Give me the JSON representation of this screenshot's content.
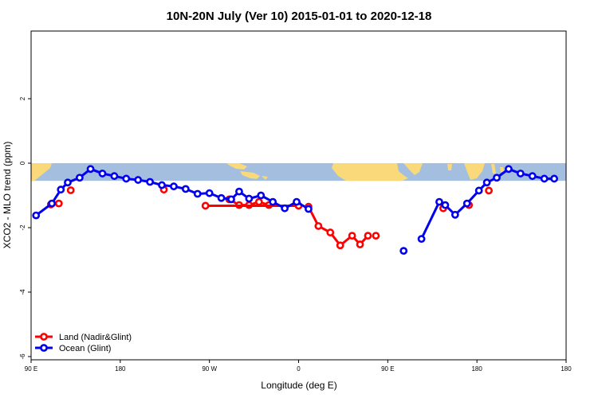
{
  "chart_data": {
    "type": "line",
    "title": "10N-20N July (Ver 10)   2015-01-01 to 2020-12-18",
    "xlabel": "Longitude (deg E)",
    "ylabel": "XCO2 - MLO trend (ppm)",
    "xlim": [
      -90,
      180
    ],
    "ylim": [
      -6.1,
      4.1
    ],
    "xticks": [
      {
        "value": -90,
        "label": "90 E"
      },
      {
        "value": -45,
        "label": "180"
      },
      {
        "value": 0,
        "label": "90 W"
      },
      {
        "value": 45,
        "label": "0"
      },
      {
        "value": 90,
        "label": "90 E"
      },
      {
        "value": 135,
        "label": "180"
      }
    ],
    "yticks": [
      {
        "value": -6,
        "label": "-6"
      },
      {
        "value": -4,
        "label": "-4"
      },
      {
        "value": -2,
        "label": "-2"
      },
      {
        "value": 0,
        "label": "0"
      },
      {
        "value": 2,
        "label": "2"
      }
    ],
    "grid": false,
    "legend_position": "bottom-left",
    "map_band": {
      "y_top": 0.0,
      "y_bottom": -0.55,
      "ocean_color": "#a4bee0",
      "land_color": "#f9d97a"
    },
    "series": [
      {
        "name": "Land (Nadir&Glint)",
        "color": "#ff0000",
        "segments": [
          {
            "x": [
              -80,
              -76
            ],
            "y": [
              -1.28,
              -1.25
            ]
          },
          {
            "x": [
              -70
            ],
            "y": [
              -0.84
            ]
          },
          {
            "x": [
              -23
            ],
            "y": [
              -0.82
            ]
          },
          {
            "x": [
              10,
              15,
              20,
              25,
              30
            ],
            "y": [
              -1.12,
              -1.3,
              -1.3,
              -1.2,
              -1.3
            ]
          },
          {
            "x": [
              -2,
              45
            ],
            "y": [
              -1.32,
              -1.32
            ]
          },
          {
            "x": [
              50,
              55,
              61,
              66,
              72,
              76,
              80
            ],
            "y": [
              -1.35,
              -1.95,
              -2.15,
              -2.55,
              -2.25,
              -2.52,
              -2.25
            ]
          },
          {
            "x": [
              84
            ],
            "y": [
              -2.25
            ]
          },
          {
            "x": [
              118
            ],
            "y": [
              -1.4
            ]
          },
          {
            "x": [
              131
            ],
            "y": [
              -1.3
            ]
          },
          {
            "x": [
              141
            ],
            "y": [
              -0.85
            ]
          }
        ]
      },
      {
        "name": "Ocean (Glint)",
        "color": "#0000ee",
        "segments": [
          {
            "x": [
              -87.5,
              -79.5,
              -75,
              -71.5,
              -65.5,
              -60,
              -54,
              -48,
              -42,
              -36,
              -30,
              -24,
              -18,
              -12,
              -6,
              0,
              6,
              11,
              15,
              20,
              26,
              32,
              38,
              44,
              50
            ],
            "y": [
              -1.62,
              -1.25,
              -0.82,
              -0.6,
              -0.45,
              -0.18,
              -0.32,
              -0.4,
              -0.48,
              -0.52,
              -0.58,
              -0.68,
              -0.72,
              -0.8,
              -0.95,
              -0.93,
              -1.08,
              -1.12,
              -0.88,
              -1.1,
              -1.0,
              -1.2,
              -1.4,
              -1.2,
              -1.42
            ]
          },
          {
            "x": [
              98
            ],
            "y": [
              -2.72
            ]
          },
          {
            "x": [
              107,
              116,
              119,
              124,
              130,
              136,
              140,
              145,
              151,
              157,
              163,
              169,
              174
            ],
            "y": [
              -2.35,
              -1.2,
              -1.3,
              -1.6,
              -1.25,
              -0.85,
              -0.6,
              -0.45,
              -0.18,
              -0.32,
              -0.4,
              -0.48,
              -0.48
            ]
          }
        ]
      }
    ]
  }
}
